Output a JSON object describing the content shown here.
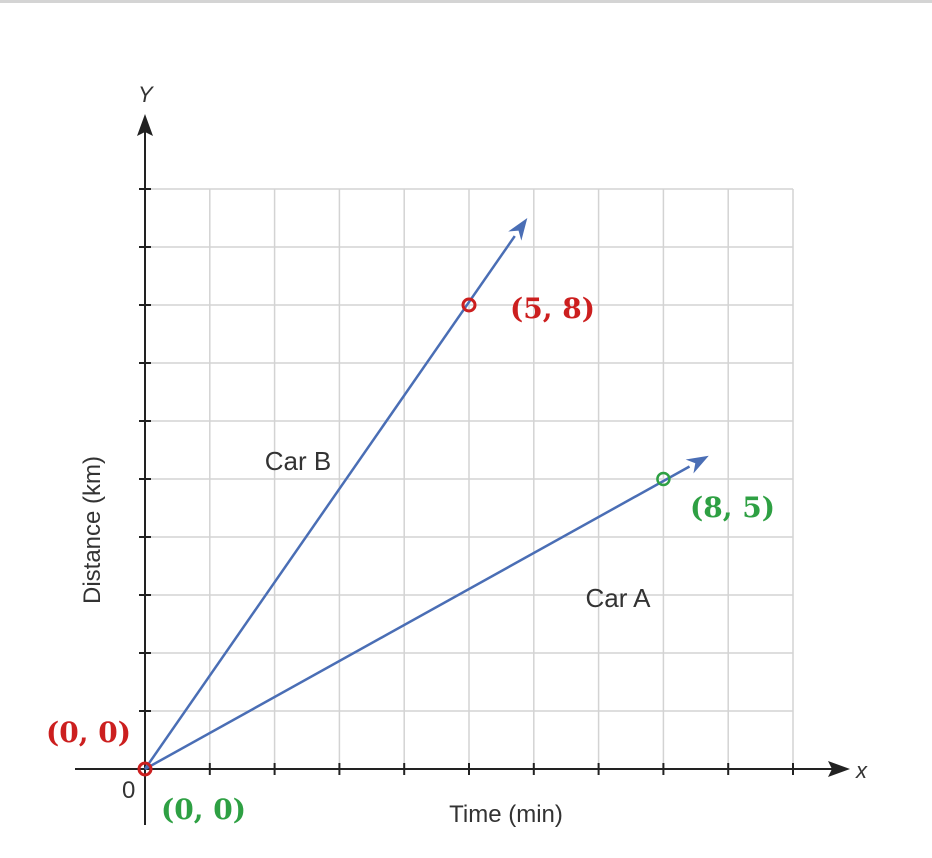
{
  "chart_data": {
    "type": "line",
    "xlabel": "Time (min)",
    "ylabel": "Distance (km)",
    "x_axis_letter": "x",
    "y_axis_letter": "Y",
    "origin_label": "0",
    "xlim": [
      0,
      10
    ],
    "ylim": [
      0,
      10
    ],
    "grid": true,
    "series": [
      {
        "name": "Car A",
        "x": [
          0,
          8
        ],
        "y": [
          0,
          5
        ],
        "arrow_to": [
          8.7,
          5.4
        ],
        "color": "#4a6eb5"
      },
      {
        "name": "Car B",
        "x": [
          0,
          5
        ],
        "y": [
          0,
          8
        ],
        "arrow_to": [
          5.9,
          9.5
        ],
        "color": "#4a6eb5"
      }
    ],
    "annotations": [
      {
        "text": "(5, 8)",
        "x": 5,
        "y": 8,
        "color": "#cc1f1f"
      },
      {
        "text": "(8, 5)",
        "x": 8,
        "y": 5,
        "color": "#2ea043"
      },
      {
        "text": "(0, 0)",
        "x": 0,
        "y": 0,
        "color": "#cc1f1f"
      },
      {
        "text": "(0, 0)",
        "x": 0,
        "y": 0,
        "color": "#2ea043"
      }
    ]
  }
}
